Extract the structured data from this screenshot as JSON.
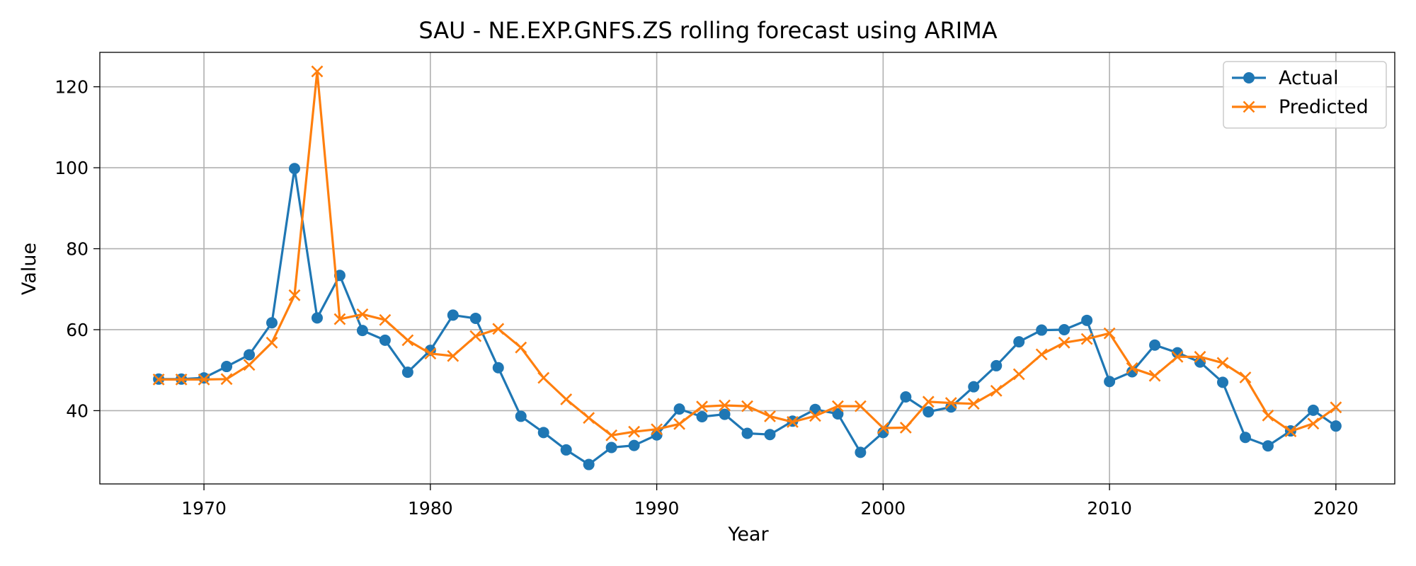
{
  "chart_data": {
    "type": "line",
    "title": "SAU - NE.EXP.GNFS.ZS rolling forecast using ARIMA",
    "xlabel": "Year",
    "ylabel": "Value",
    "xlim": [
      1965.4,
      2022.6
    ],
    "ylim": [
      21.9,
      128.5
    ],
    "xticks": [
      1970,
      1980,
      1990,
      2000,
      2010,
      2020
    ],
    "yticks": [
      40,
      60,
      80,
      100,
      120
    ],
    "grid": true,
    "legend_position": "top-right",
    "x": [
      1968,
      1969,
      1970,
      1971,
      1972,
      1973,
      1974,
      1975,
      1976,
      1977,
      1978,
      1979,
      1980,
      1981,
      1982,
      1983,
      1984,
      1985,
      1986,
      1987,
      1988,
      1989,
      1990,
      1991,
      1992,
      1993,
      1994,
      1995,
      1996,
      1997,
      1998,
      1999,
      2000,
      2001,
      2002,
      2003,
      2004,
      2005,
      2006,
      2007,
      2008,
      2009,
      2010,
      2011,
      2012,
      2013,
      2014,
      2015,
      2016,
      2017,
      2018,
      2019,
      2020
    ],
    "series": [
      {
        "name": "Actual",
        "color": "#1f77b4",
        "marker": "circle",
        "values": [
          47.8,
          47.8,
          48.1,
          50.9,
          53.8,
          61.7,
          99.8,
          62.9,
          73.4,
          59.8,
          57.4,
          49.5,
          54.9,
          63.6,
          62.8,
          50.6,
          38.6,
          34.6,
          30.3,
          26.7,
          30.9,
          31.4,
          34.0,
          40.4,
          38.5,
          39.1,
          34.4,
          34.1,
          37.4,
          40.3,
          39.2,
          29.7,
          34.6,
          43.4,
          39.7,
          40.9,
          45.9,
          51.1,
          57.0,
          59.9,
          60.0,
          62.3,
          47.2,
          49.6,
          56.2,
          54.3,
          52.0,
          47.0,
          33.4,
          31.3,
          35.0,
          40.1,
          36.2
        ]
      },
      {
        "name": "Predicted",
        "color": "#ff7f0e",
        "marker": "x",
        "values": [
          47.7,
          47.7,
          47.7,
          47.8,
          51.3,
          56.8,
          68.5,
          123.8,
          62.6,
          63.8,
          62.4,
          57.4,
          54.1,
          53.5,
          58.4,
          60.2,
          55.6,
          48.1,
          42.8,
          38.2,
          33.9,
          34.8,
          35.4,
          36.7,
          41.0,
          41.3,
          41.1,
          38.6,
          37.2,
          38.7,
          41.1,
          41.1,
          35.7,
          35.8,
          42.2,
          41.9,
          41.7,
          44.9,
          49.0,
          53.9,
          56.8,
          57.7,
          59.1,
          50.5,
          48.6,
          53.3,
          53.3,
          51.8,
          48.2,
          38.8,
          34.9,
          36.8,
          40.8
        ]
      }
    ]
  }
}
